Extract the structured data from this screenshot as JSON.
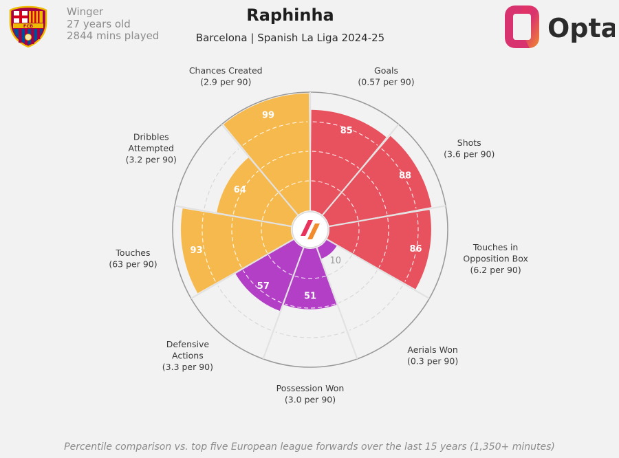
{
  "header": {
    "player_name": "Raphinha",
    "subtitle": "Barcelona | Spanish La Liga 2024-25",
    "position": "Winger",
    "age": "27 years old",
    "minutes": "2844 mins played",
    "provider": "Opta",
    "club_crest_letters": "FCB"
  },
  "footnote": "Percentile comparison vs. top five European league forwards over the last 15 years (1,350+ minutes)",
  "colors": {
    "attacking": "#e8525f",
    "possession": "#f6b94e",
    "defending": "#b23fc6",
    "ring": "#9a9a9a",
    "grid": "#ffffff"
  },
  "chart_data": {
    "type": "radar",
    "scale": "percentile",
    "rlim": [
      0,
      100
    ],
    "grid": true,
    "categories": [
      {
        "name": "Goals",
        "label_lines": [
          "Goals",
          "(0.57 per 90)"
        ],
        "per90": "0.57 per 90",
        "percentile": 85,
        "group": "attacking"
      },
      {
        "name": "Shots",
        "label_lines": [
          "Shots",
          "(3.6 per 90)"
        ],
        "per90": "3.6 per 90",
        "percentile": 88,
        "group": "attacking"
      },
      {
        "name": "Touches in Opposition Box",
        "label_lines": [
          "Touches in",
          "Opposition Box",
          "(6.2 per 90)"
        ],
        "per90": "6.2 per 90",
        "percentile": 86,
        "group": "attacking"
      },
      {
        "name": "Aerials Won",
        "label_lines": [
          "Aerials Won",
          "(0.3 per 90)"
        ],
        "per90": "0.3 per 90",
        "percentile": 10,
        "group": "defending"
      },
      {
        "name": "Possession Won",
        "label_lines": [
          "Possession Won",
          "(3.0 per 90)"
        ],
        "per90": "3.0 per 90",
        "percentile": 51,
        "group": "defending"
      },
      {
        "name": "Defensive Actions",
        "label_lines": [
          "Defensive",
          "Actions",
          "(3.3 per 90)"
        ],
        "per90": "3.3 per 90",
        "percentile": 57,
        "group": "defending"
      },
      {
        "name": "Touches",
        "label_lines": [
          "Touches",
          "(63 per 90)"
        ],
        "per90": "63 per 90",
        "percentile": 93,
        "group": "possession"
      },
      {
        "name": "Dribbles Attempted",
        "label_lines": [
          "Dribbles",
          "Attempted",
          "(3.2 per 90)"
        ],
        "per90": "3.2 per 90",
        "percentile": 64,
        "group": "possession"
      },
      {
        "name": "Chances Created",
        "label_lines": [
          "Chances Created",
          "(2.9 per 90)"
        ],
        "per90": "2.9 per 90",
        "percentile": 99,
        "group": "possession"
      }
    ]
  }
}
